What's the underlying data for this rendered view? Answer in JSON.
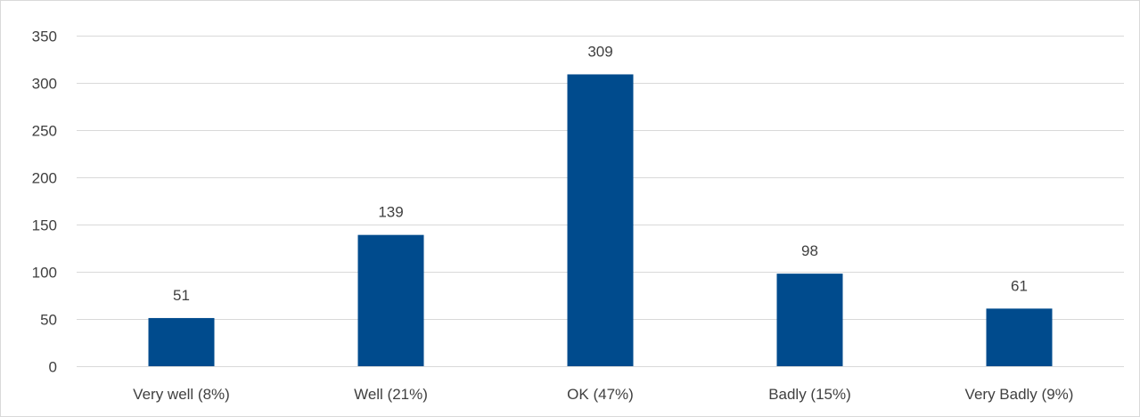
{
  "chart_data": {
    "type": "bar",
    "title": "",
    "xlabel": "",
    "ylabel": "",
    "categories": [
      "Very well (8%)",
      "Well (21%)",
      "OK (47%)",
      "Badly (15%)",
      "Very Badly (9%)"
    ],
    "values": [
      51,
      139,
      309,
      98,
      61
    ],
    "data_labels": [
      "51",
      "139",
      "309",
      "98",
      "61"
    ],
    "ylim": [
      0,
      350
    ],
    "yticks": [
      0,
      50,
      100,
      150,
      200,
      250,
      300,
      350
    ],
    "ytick_labels": [
      "0",
      "50",
      "100",
      "150",
      "200",
      "250",
      "300",
      "350"
    ],
    "grid": true,
    "legend": "none",
    "colors": {
      "bar": "#004B8D",
      "grid": "#d9d9d9",
      "text": "#404040"
    }
  }
}
